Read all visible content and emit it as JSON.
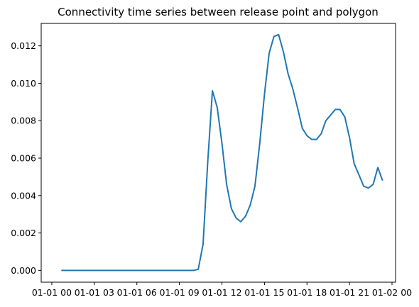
{
  "chart_data": {
    "type": "line",
    "title": "Connectivity time series between release point and polygon",
    "xlabel": "",
    "ylabel": "",
    "x_axis": {
      "type": "time",
      "range_hours": [
        -0.75,
        24.25
      ],
      "ticks_hours": [
        0,
        3,
        6,
        9,
        12,
        15,
        18,
        21,
        24
      ],
      "tick_labels": [
        "01-01 00",
        "01-01 03",
        "01-01 06",
        "01-01 09",
        "01-01 12",
        "01-01 15",
        "01-01 18",
        "01-01 21",
        "01-02 00"
      ]
    },
    "y_axis": {
      "range": [
        -0.00063,
        0.0132
      ],
      "ticks": [
        0.0,
        0.002,
        0.004,
        0.006,
        0.008,
        0.01,
        0.012
      ],
      "tick_labels": [
        "0.000",
        "0.002",
        "0.004",
        "0.006",
        "0.008",
        "0.010",
        "0.012"
      ]
    },
    "grid": false,
    "line_color": "#1f77b4",
    "series": [
      {
        "x_hours": [
          0.67,
          1.0,
          1.33,
          1.67,
          2.0,
          2.33,
          2.67,
          3.0,
          3.33,
          3.67,
          4.0,
          4.33,
          4.67,
          5.0,
          5.33,
          5.67,
          6.0,
          6.33,
          6.67,
          7.0,
          7.33,
          7.67,
          8.0,
          8.33,
          8.67,
          9.0,
          9.33,
          9.67,
          10.0,
          10.33,
          10.67,
          11.0,
          11.33,
          11.67,
          12.0,
          12.33,
          12.67,
          13.0,
          13.33,
          13.67,
          14.0,
          14.33,
          14.67,
          15.0,
          15.33,
          15.67,
          16.0,
          16.33,
          16.67,
          17.0,
          17.33,
          17.67,
          18.0,
          18.33,
          18.67,
          19.0,
          19.33,
          19.67,
          20.0,
          20.33,
          20.67,
          21.0,
          21.33,
          21.67,
          22.0,
          22.33,
          22.67,
          23.0,
          23.33
        ],
        "values": [
          0.0,
          0.0,
          0.0,
          0.0,
          0.0,
          0.0,
          0.0,
          0.0,
          0.0,
          0.0,
          0.0,
          0.0,
          0.0,
          0.0,
          0.0,
          0.0,
          0.0,
          0.0,
          0.0,
          0.0,
          0.0,
          0.0,
          0.0,
          0.0,
          0.0,
          0.0,
          0.0,
          0.0,
          0.0,
          6e-05,
          0.0014,
          0.0058,
          0.0096,
          0.0087,
          0.0068,
          0.0046,
          0.0033,
          0.0028,
          0.0026,
          0.0029,
          0.0035,
          0.0045,
          0.0068,
          0.0094,
          0.0116,
          0.0125,
          0.0126,
          0.0117,
          0.0105,
          0.0097,
          0.0087,
          0.0076,
          0.0072,
          0.007,
          0.007,
          0.0073,
          0.008,
          0.0083,
          0.0086,
          0.0086,
          0.0082,
          0.0071,
          0.0057,
          0.0051,
          0.0045,
          0.0044,
          0.0046,
          0.0055,
          0.0048
        ]
      }
    ]
  }
}
